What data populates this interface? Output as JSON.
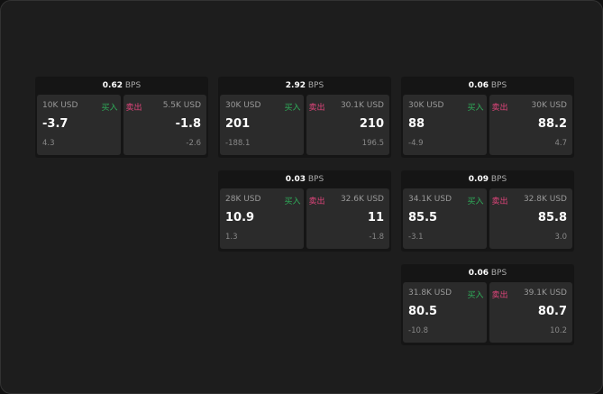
{
  "unit": "BPS",
  "buy_label": "买入",
  "sell_label": "卖出",
  "colors": {
    "buy": "#2fae5a",
    "sell": "#e0457b"
  },
  "cards": [
    {
      "spread": "0.62",
      "buy": {
        "qty": "10K USD",
        "price": "-3.7",
        "change": "4.3"
      },
      "sell": {
        "qty": "5.5K USD",
        "price": "-1.8",
        "change": "-2.6"
      }
    },
    {
      "spread": "2.92",
      "buy": {
        "qty": "30K USD",
        "price": "201",
        "change": "-188.1"
      },
      "sell": {
        "qty": "30.1K USD",
        "price": "210",
        "change": "196.5"
      }
    },
    {
      "spread": "0.06",
      "buy": {
        "qty": "30K USD",
        "price": "88",
        "change": "-4.9"
      },
      "sell": {
        "qty": "30K USD",
        "price": "88.2",
        "change": "4.7"
      }
    },
    {
      "spread": "0.03",
      "buy": {
        "qty": "28K USD",
        "price": "10.9",
        "change": "1.3"
      },
      "sell": {
        "qty": "32.6K USD",
        "price": "11",
        "change": "-1.8"
      }
    },
    {
      "spread": "0.09",
      "buy": {
        "qty": "34.1K USD",
        "price": "85.5",
        "change": "-3.1"
      },
      "sell": {
        "qty": "32.8K USD",
        "price": "85.8",
        "change": "3.0"
      }
    },
    {
      "spread": "0.06",
      "buy": {
        "qty": "31.8K USD",
        "price": "80.5",
        "change": "-10.8"
      },
      "sell": {
        "qty": "39.1K USD",
        "price": "80.7",
        "change": "10.2"
      }
    }
  ]
}
